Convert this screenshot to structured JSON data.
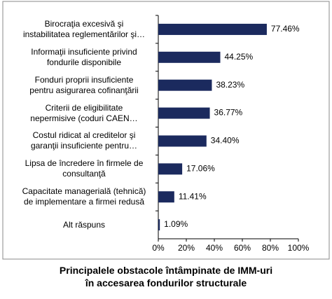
{
  "chart_data": {
    "type": "barh",
    "title": "Principalele obstacole întâmpinate de IMM-uri\nîn accesarea fondurilor structurale",
    "categories": [
      "Birocraţia excesivă şi\ninstabilitatea reglementărilor şi…",
      "Informaţii insuficiente privind\nfondurile disponibile",
      "Fonduri proprii insuficiente\npentru asigurarea cofinanţării",
      "Criterii de eligibilitate\nnepermisive (coduri CAEN…",
      "Costul ridicat al creditelor şi\ngaranţii insuficiente pentru…",
      "Lipsa de încredere în firmele de\nconsultanţă",
      "Capacitate managerială (tehnică)\nde implementare a firmei redusă",
      "Alt răspuns"
    ],
    "values": [
      77.46,
      44.25,
      38.23,
      36.77,
      34.4,
      17.06,
      11.41,
      1.09
    ],
    "value_labels": [
      "77.46%",
      "44.25%",
      "38.23%",
      "36.77%",
      "34.40%",
      "17.06%",
      "11.41%",
      "1.09%"
    ],
    "color": "#1b2a5e",
    "xlim": [
      0,
      100
    ],
    "xticks": [
      {
        "value": 0,
        "label": "0%"
      },
      {
        "value": 20,
        "label": "20%"
      },
      {
        "value": 40,
        "label": "40%"
      },
      {
        "value": 60,
        "label": "60%"
      },
      {
        "value": 80,
        "label": "80%"
      },
      {
        "value": 100,
        "label": "100%"
      }
    ]
  }
}
